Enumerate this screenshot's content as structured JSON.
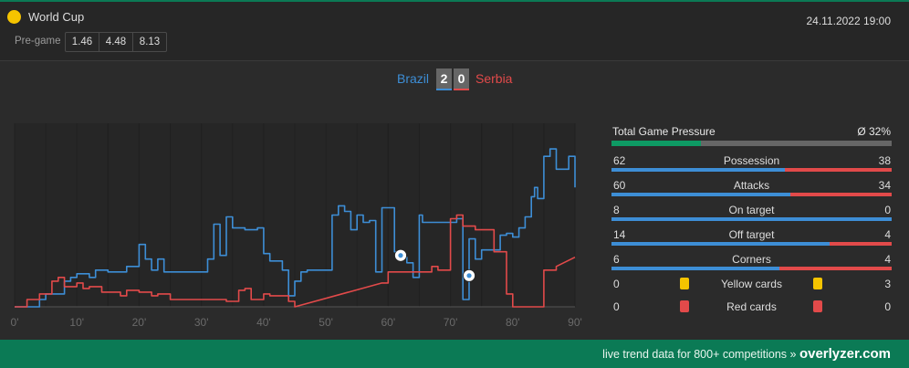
{
  "header": {
    "competition": "World Cup",
    "datetime": "24.11.2022 19:00",
    "pregame_label": "Pre-game",
    "odds": [
      "1.46",
      "4.48",
      "8.13"
    ]
  },
  "match": {
    "home_team": "Brazil",
    "away_team": "Serbia",
    "home_score": "2",
    "away_score": "0"
  },
  "colors": {
    "home": "#3d8ed6",
    "away": "#e24a4a",
    "accent": "#0b7a55",
    "competition_icon": "#f5c400"
  },
  "chart_data": {
    "type": "line",
    "x_ticks": [
      "0'",
      "10'",
      "20'",
      "30'",
      "40'",
      "50'",
      "60'",
      "70'",
      "80'",
      "90'"
    ],
    "xlim": [
      0,
      90
    ],
    "series": [
      {
        "team": "home",
        "points": [
          [
            0,
            0
          ],
          [
            4,
            0
          ],
          [
            4,
            4
          ],
          [
            5,
            4
          ],
          [
            5,
            7
          ],
          [
            8,
            7
          ],
          [
            8,
            14
          ],
          [
            9,
            14
          ],
          [
            9,
            16
          ],
          [
            10,
            16
          ],
          [
            10,
            18
          ],
          [
            12,
            18
          ],
          [
            12,
            16
          ],
          [
            13,
            16
          ],
          [
            13,
            20
          ],
          [
            15,
            20
          ],
          [
            15,
            19
          ],
          [
            18,
            19
          ],
          [
            18,
            22
          ],
          [
            20,
            22
          ],
          [
            20,
            34
          ],
          [
            21,
            34
          ],
          [
            21,
            26
          ],
          [
            22,
            26
          ],
          [
            22,
            20
          ],
          [
            23,
            20
          ],
          [
            23,
            26
          ],
          [
            24,
            26
          ],
          [
            24,
            19
          ],
          [
            31,
            19
          ],
          [
            31,
            26
          ],
          [
            32,
            26
          ],
          [
            32,
            45
          ],
          [
            33,
            45
          ],
          [
            33,
            28
          ],
          [
            34,
            28
          ],
          [
            34,
            49
          ],
          [
            35,
            49
          ],
          [
            35,
            43
          ],
          [
            37,
            43
          ],
          [
            37,
            42
          ],
          [
            38,
            42
          ],
          [
            38,
            42
          ],
          [
            39,
            42
          ],
          [
            39,
            43
          ],
          [
            40,
            43
          ],
          [
            40,
            29
          ],
          [
            41,
            29
          ],
          [
            41,
            25
          ],
          [
            43,
            25
          ],
          [
            43,
            20
          ],
          [
            44,
            20
          ],
          [
            44,
            6
          ],
          [
            45,
            6
          ],
          [
            45,
            14
          ],
          [
            46,
            14
          ],
          [
            46,
            19
          ],
          [
            47,
            19
          ],
          [
            47,
            20
          ],
          [
            51,
            20
          ],
          [
            51,
            50
          ],
          [
            52,
            50
          ],
          [
            52,
            55
          ],
          [
            53,
            55
          ],
          [
            53,
            52
          ],
          [
            54,
            52
          ],
          [
            54,
            42
          ],
          [
            55,
            42
          ],
          [
            55,
            50
          ],
          [
            56,
            50
          ],
          [
            56,
            46
          ],
          [
            57,
            46
          ],
          [
            57,
            47
          ],
          [
            58,
            47
          ],
          [
            58,
            19
          ],
          [
            59,
            19
          ],
          [
            59,
            54
          ],
          [
            61,
            54
          ],
          [
            61,
            30
          ],
          [
            62,
            30
          ],
          [
            62,
            27
          ],
          [
            63,
            27
          ],
          [
            63,
            24
          ],
          [
            64,
            24
          ],
          [
            64,
            16
          ],
          [
            65,
            16
          ],
          [
            65,
            50
          ],
          [
            65.5,
            50
          ],
          [
            65.5,
            46
          ],
          [
            71,
            46
          ],
          [
            71,
            48
          ],
          [
            72,
            48
          ],
          [
            72,
            4
          ],
          [
            73,
            4
          ],
          [
            73,
            37
          ],
          [
            74,
            37
          ],
          [
            74,
            26
          ],
          [
            75,
            26
          ],
          [
            75,
            31
          ],
          [
            78,
            31
          ],
          [
            78,
            39
          ],
          [
            79,
            39
          ],
          [
            79,
            40
          ],
          [
            80,
            40
          ],
          [
            80,
            38
          ],
          [
            81,
            38
          ],
          [
            81,
            43
          ],
          [
            82,
            43
          ],
          [
            82,
            49
          ],
          [
            83,
            49
          ],
          [
            83,
            60
          ],
          [
            83.5,
            60
          ],
          [
            83.5,
            65
          ],
          [
            84,
            65
          ],
          [
            84,
            59
          ],
          [
            85,
            59
          ],
          [
            85,
            82
          ],
          [
            86,
            82
          ],
          [
            86,
            86
          ],
          [
            87,
            86
          ],
          [
            87,
            75
          ],
          [
            88,
            75
          ],
          [
            88,
            75
          ],
          [
            89,
            75
          ],
          [
            89,
            82
          ],
          [
            90,
            82
          ],
          [
            90,
            65
          ]
        ]
      },
      {
        "team": "away",
        "points": [
          [
            0,
            0
          ],
          [
            2,
            0
          ],
          [
            2,
            4
          ],
          [
            4,
            4
          ],
          [
            4,
            7
          ],
          [
            6,
            7
          ],
          [
            6,
            14
          ],
          [
            7,
            14
          ],
          [
            7,
            16
          ],
          [
            8,
            16
          ],
          [
            8,
            11
          ],
          [
            10,
            11
          ],
          [
            10,
            13
          ],
          [
            11,
            13
          ],
          [
            11,
            10
          ],
          [
            12,
            10
          ],
          [
            12,
            11
          ],
          [
            14,
            11
          ],
          [
            14,
            8
          ],
          [
            17,
            8
          ],
          [
            17,
            6
          ],
          [
            18,
            6
          ],
          [
            18,
            9
          ],
          [
            20,
            9
          ],
          [
            20,
            8
          ],
          [
            22,
            8
          ],
          [
            22,
            6
          ],
          [
            23,
            6
          ],
          [
            23,
            7
          ],
          [
            25,
            7
          ],
          [
            25,
            4
          ],
          [
            34,
            4
          ],
          [
            34,
            3
          ],
          [
            36,
            3
          ],
          [
            36,
            9
          ],
          [
            37,
            9
          ],
          [
            37,
            10
          ],
          [
            38,
            10
          ],
          [
            38,
            4
          ],
          [
            40,
            4
          ],
          [
            40,
            7
          ],
          [
            41,
            7
          ],
          [
            41,
            6
          ],
          [
            44,
            6
          ],
          [
            44,
            3
          ],
          [
            45,
            3
          ],
          [
            45,
            0
          ],
          [
            59,
            13
          ],
          [
            60,
            13
          ],
          [
            60,
            19
          ],
          [
            67,
            19
          ],
          [
            67,
            22
          ],
          [
            68,
            22
          ],
          [
            68,
            20
          ],
          [
            70,
            20
          ],
          [
            70,
            48
          ],
          [
            71,
            48
          ],
          [
            71,
            50
          ],
          [
            72,
            50
          ],
          [
            72,
            44
          ],
          [
            74,
            44
          ],
          [
            74,
            42
          ],
          [
            77,
            42
          ],
          [
            77,
            30
          ],
          [
            79,
            30
          ],
          [
            79,
            7
          ],
          [
            80,
            7
          ],
          [
            80,
            0
          ],
          [
            84,
            0
          ],
          [
            84,
            0
          ],
          [
            85,
            0
          ],
          [
            85,
            20
          ],
          [
            87,
            20
          ],
          [
            87,
            22
          ],
          [
            90,
            27
          ]
        ]
      }
    ],
    "goal_markers": [
      {
        "team": "home",
        "minute": 62,
        "y": 28
      },
      {
        "team": "home",
        "minute": 73,
        "y": 17
      }
    ]
  },
  "stats": {
    "pressure_title": "Total Game Pressure",
    "pressure_value": "Ø 32%",
    "pressure_fraction": 0.32,
    "rows": [
      {
        "label": "Possession",
        "home": "62",
        "away": "38",
        "home_share": 0.62
      },
      {
        "label": "Attacks",
        "home": "60",
        "away": "34",
        "home_share": 0.638
      },
      {
        "label": "On target",
        "home": "8",
        "away": "0",
        "home_share": 1.0
      },
      {
        "label": "Off target",
        "home": "14",
        "away": "4",
        "home_share": 0.778
      },
      {
        "label": "Corners",
        "home": "6",
        "away": "4",
        "home_share": 0.6
      }
    ],
    "cards": [
      {
        "label": "Yellow cards",
        "home": "0",
        "away": "3",
        "color": "yellow"
      },
      {
        "label": "Red cards",
        "home": "0",
        "away": "0",
        "color": "red"
      }
    ]
  },
  "footer": {
    "text": "live trend data for 800+ competitions »",
    "brand": "overlyzer.com"
  }
}
